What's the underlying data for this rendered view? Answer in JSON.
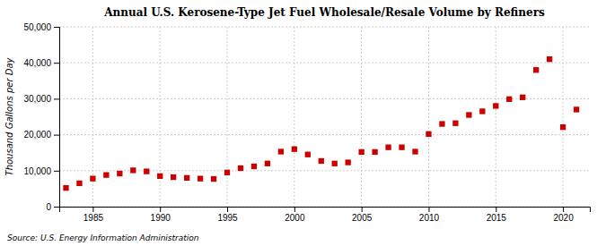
{
  "chart_data": {
    "type": "scatter",
    "title": "Annual U.S. Kerosene-Type Jet Fuel Wholesale/Resale Volume by Refiners",
    "ylabel": "Thousand Gallons per Day",
    "annotations": [
      "Source: U.S. Energy Information Administration"
    ],
    "x": [
      1983,
      1984,
      1985,
      1986,
      1987,
      1988,
      1989,
      1990,
      1991,
      1992,
      1993,
      1994,
      1995,
      1996,
      1997,
      1998,
      1999,
      2000,
      2001,
      2002,
      2003,
      2004,
      2005,
      2006,
      2007,
      2008,
      2009,
      2010,
      2011,
      2012,
      2013,
      2014,
      2015,
      2016,
      2017,
      2018,
      2019,
      2020,
      2021
    ],
    "values": [
      5200,
      6500,
      7800,
      8800,
      9200,
      10100,
      9800,
      8500,
      8200,
      8000,
      7800,
      7700,
      9500,
      10700,
      11200,
      12000,
      15300,
      16000,
      14500,
      12700,
      12000,
      12300,
      15200,
      15200,
      16500,
      16500,
      15300,
      20200,
      23000,
      23200,
      25500,
      26500,
      28000,
      29900,
      30400,
      38000,
      41000,
      22100,
      27000
    ],
    "color": "#cc0000",
    "marker": "square",
    "xlim": [
      1982.5,
      2022
    ],
    "xticks": [
      1985,
      1990,
      1995,
      2000,
      2005,
      2010,
      2015,
      2020
    ],
    "ylim": [
      0,
      50000
    ],
    "yticks": [
      0,
      {
        "value": 10000,
        "label": "10,000"
      },
      {
        "value": 20000,
        "label": "20,000"
      },
      {
        "value": 30000,
        "label": "30,000"
      },
      {
        "value": 40000,
        "label": "40,000"
      },
      {
        "value": 50000,
        "label": "50,000"
      }
    ],
    "grid": true
  }
}
